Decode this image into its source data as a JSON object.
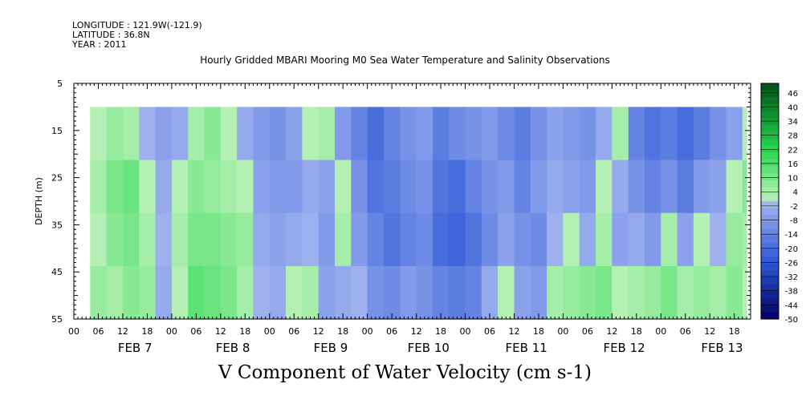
{
  "header": {
    "longitude": "LONGITUDE : 121.9W(-121.9)",
    "latitude": "LATITUDE : 36.8N",
    "year": "YEAR : 2011"
  },
  "chart_data": {
    "type": "heatmap",
    "title": "Hourly Gridded MBARI Mooring M0 Sea Water Temperature and Salinity Observations",
    "xlabel": "V Component of Water Velocity (cm s-1)",
    "ylabel": "DEPTH (m)",
    "ylim": [
      55,
      5
    ],
    "y_ticks": [
      5,
      15,
      25,
      35,
      45,
      55
    ],
    "x_hour_ticks": [
      "00",
      "06",
      "12",
      "18",
      "00",
      "06",
      "12",
      "18",
      "00",
      "06",
      "12",
      "18",
      "00",
      "06",
      "12",
      "18",
      "00",
      "06",
      "12",
      "18",
      "00",
      "06",
      "12",
      "18",
      "00",
      "06",
      "12",
      "18"
    ],
    "x_date_labels": [
      "FEB  7",
      "FEB  8",
      "FEB  9",
      "FEB 10",
      "FEB 11",
      "FEB 12",
      "FEB 13"
    ],
    "x_range_hours": [
      0,
      166
    ],
    "data_depth_range": [
      10,
      55
    ],
    "data_time_start_hour": 4,
    "colorbar": {
      "levels": [
        "46",
        "40",
        "34",
        "28",
        "22",
        "16",
        "10",
        "4",
        "-2",
        "-8",
        "-14",
        "-20",
        "-26",
        "-32",
        "-38",
        "-44",
        "-50"
      ],
      "range": [
        -50,
        50
      ]
    },
    "velocity_columns": [
      {
        "hour": 4,
        "values": [
          2,
          4,
          2,
          6
        ]
      },
      {
        "hour": 8,
        "values": [
          6,
          10,
          8,
          4
        ]
      },
      {
        "hour": 12,
        "values": [
          4,
          12,
          10,
          8
        ]
      },
      {
        "hour": 16,
        "values": [
          -2,
          2,
          4,
          6
        ]
      },
      {
        "hour": 20,
        "values": [
          -6,
          -4,
          -2,
          -4
        ]
      },
      {
        "hour": 24,
        "values": [
          -4,
          2,
          4,
          2
        ]
      },
      {
        "hour": 28,
        "values": [
          4,
          8,
          10,
          14
        ]
      },
      {
        "hour": 32,
        "values": [
          8,
          6,
          10,
          12
        ]
      },
      {
        "hour": 36,
        "values": [
          2,
          4,
          8,
          10
        ]
      },
      {
        "hour": 40,
        "values": [
          -4,
          2,
          6,
          4
        ]
      },
      {
        "hour": 44,
        "values": [
          -8,
          -6,
          -4,
          -2
        ]
      },
      {
        "hour": 48,
        "values": [
          -10,
          -8,
          -6,
          -4
        ]
      },
      {
        "hour": 52,
        "values": [
          -6,
          -8,
          -4,
          2
        ]
      },
      {
        "hour": 56,
        "values": [
          2,
          -4,
          -2,
          4
        ]
      },
      {
        "hour": 60,
        "values": [
          4,
          -6,
          -8,
          -6
        ]
      },
      {
        "hour": 64,
        "values": [
          -8,
          2,
          4,
          -4
        ]
      },
      {
        "hour": 68,
        "values": [
          -14,
          -10,
          -8,
          -2
        ]
      },
      {
        "hour": 72,
        "values": [
          -20,
          -18,
          -14,
          -10
        ]
      },
      {
        "hour": 76,
        "values": [
          -14,
          -16,
          -18,
          -12
        ]
      },
      {
        "hour": 80,
        "values": [
          -10,
          -12,
          -14,
          -8
        ]
      },
      {
        "hour": 84,
        "values": [
          -8,
          -10,
          -12,
          -10
        ]
      },
      {
        "hour": 88,
        "values": [
          -16,
          -18,
          -20,
          -14
        ]
      },
      {
        "hour": 92,
        "values": [
          -12,
          -20,
          -22,
          -16
        ]
      },
      {
        "hour": 96,
        "values": [
          -10,
          -14,
          -18,
          -14
        ]
      },
      {
        "hour": 100,
        "values": [
          -8,
          -10,
          -12,
          -4
        ]
      },
      {
        "hour": 104,
        "values": [
          -12,
          -8,
          -6,
          2
        ]
      },
      {
        "hour": 108,
        "values": [
          -16,
          -14,
          -10,
          -6
        ]
      },
      {
        "hour": 112,
        "values": [
          -10,
          -8,
          -12,
          -8
        ]
      },
      {
        "hour": 116,
        "values": [
          -6,
          -4,
          -2,
          4
        ]
      },
      {
        "hour": 120,
        "values": [
          -8,
          -6,
          2,
          6
        ]
      },
      {
        "hour": 124,
        "values": [
          -10,
          -8,
          -4,
          8
        ]
      },
      {
        "hour": 128,
        "values": [
          -4,
          2,
          4,
          10
        ]
      },
      {
        "hour": 132,
        "values": [
          4,
          -4,
          -6,
          2
        ]
      },
      {
        "hour": 136,
        "values": [
          -14,
          -10,
          -4,
          4
        ]
      },
      {
        "hour": 140,
        "values": [
          -18,
          -14,
          -8,
          6
        ]
      },
      {
        "hour": 144,
        "values": [
          -16,
          -10,
          4,
          10
        ]
      },
      {
        "hour": 148,
        "values": [
          -20,
          -16,
          -6,
          4
        ]
      },
      {
        "hour": 152,
        "values": [
          -16,
          -8,
          2,
          6
        ]
      },
      {
        "hour": 156,
        "values": [
          -10,
          -6,
          -2,
          4
        ]
      },
      {
        "hour": 160,
        "values": [
          -6,
          2,
          6,
          8
        ]
      },
      {
        "hour": 164,
        "values": [
          2,
          8,
          4,
          2
        ]
      }
    ]
  },
  "colors": {
    "strong_negative": "#000066",
    "negative": "#2f5ad8",
    "weak_negative": "#9fb0ef",
    "weak_positive": "#b4f0b4",
    "positive": "#22d84a",
    "strong_positive": "#004d1a"
  }
}
